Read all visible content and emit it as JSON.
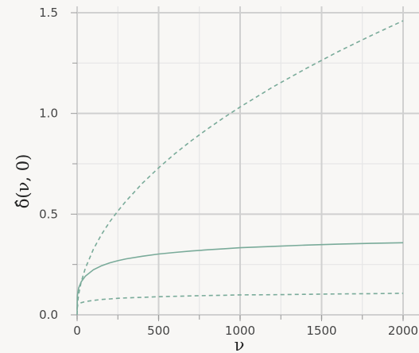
{
  "chart_data": {
    "type": "line",
    "title": "",
    "xlabel": "ν",
    "ylabel": "δ̂(ν, 0)",
    "xlim": [
      0,
      2000
    ],
    "ylim": [
      0,
      1.5
    ],
    "xticks": [
      0,
      500,
      1000,
      1500,
      2000
    ],
    "xtick_labels": [
      "0",
      "500",
      "1000",
      "1500",
      "2000"
    ],
    "yticks": [
      0,
      0.5,
      1.0,
      1.5
    ],
    "ytick_labels": [
      "0.0",
      "0.5",
      "1.0",
      "1.5"
    ],
    "grid": true,
    "legend": "none",
    "line_color": "#7aab9a",
    "series": [
      {
        "style": "dashed",
        "x": [
          0,
          2,
          5,
          10,
          25,
          50,
          100,
          150,
          200,
          250,
          300,
          400,
          500,
          600,
          700,
          800,
          900,
          1000,
          1200,
          1400,
          1600,
          1800,
          2000
        ],
        "y": [
          0.0,
          0.046,
          0.073,
          0.103,
          0.163,
          0.231,
          0.326,
          0.4,
          0.462,
          0.516,
          0.565,
          0.653,
          0.73,
          0.8,
          0.864,
          0.923,
          0.979,
          1.032,
          1.131,
          1.221,
          1.306,
          1.385,
          1.46
        ]
      },
      {
        "style": "solid",
        "x": [
          0,
          2,
          5,
          10,
          25,
          50,
          100,
          150,
          200,
          250,
          300,
          400,
          500,
          600,
          700,
          800,
          900,
          1000,
          1200,
          1400,
          1600,
          1800,
          2000
        ],
        "y": [
          0.02,
          0.095,
          0.115,
          0.134,
          0.164,
          0.192,
          0.224,
          0.244,
          0.258,
          0.269,
          0.278,
          0.291,
          0.302,
          0.31,
          0.317,
          0.323,
          0.328,
          0.333,
          0.34,
          0.346,
          0.351,
          0.355,
          0.358
        ]
      },
      {
        "style": "dashed",
        "x": [
          0,
          2,
          5,
          10,
          25,
          50,
          100,
          150,
          200,
          250,
          300,
          400,
          500,
          600,
          700,
          800,
          900,
          1000,
          1200,
          1400,
          1600,
          1800,
          2000
        ],
        "y": [
          0.03,
          0.042,
          0.048,
          0.053,
          0.06,
          0.066,
          0.072,
          0.076,
          0.079,
          0.082,
          0.084,
          0.087,
          0.09,
          0.092,
          0.094,
          0.096,
          0.097,
          0.099,
          0.1,
          0.102,
          0.104,
          0.105,
          0.107
        ]
      }
    ]
  }
}
